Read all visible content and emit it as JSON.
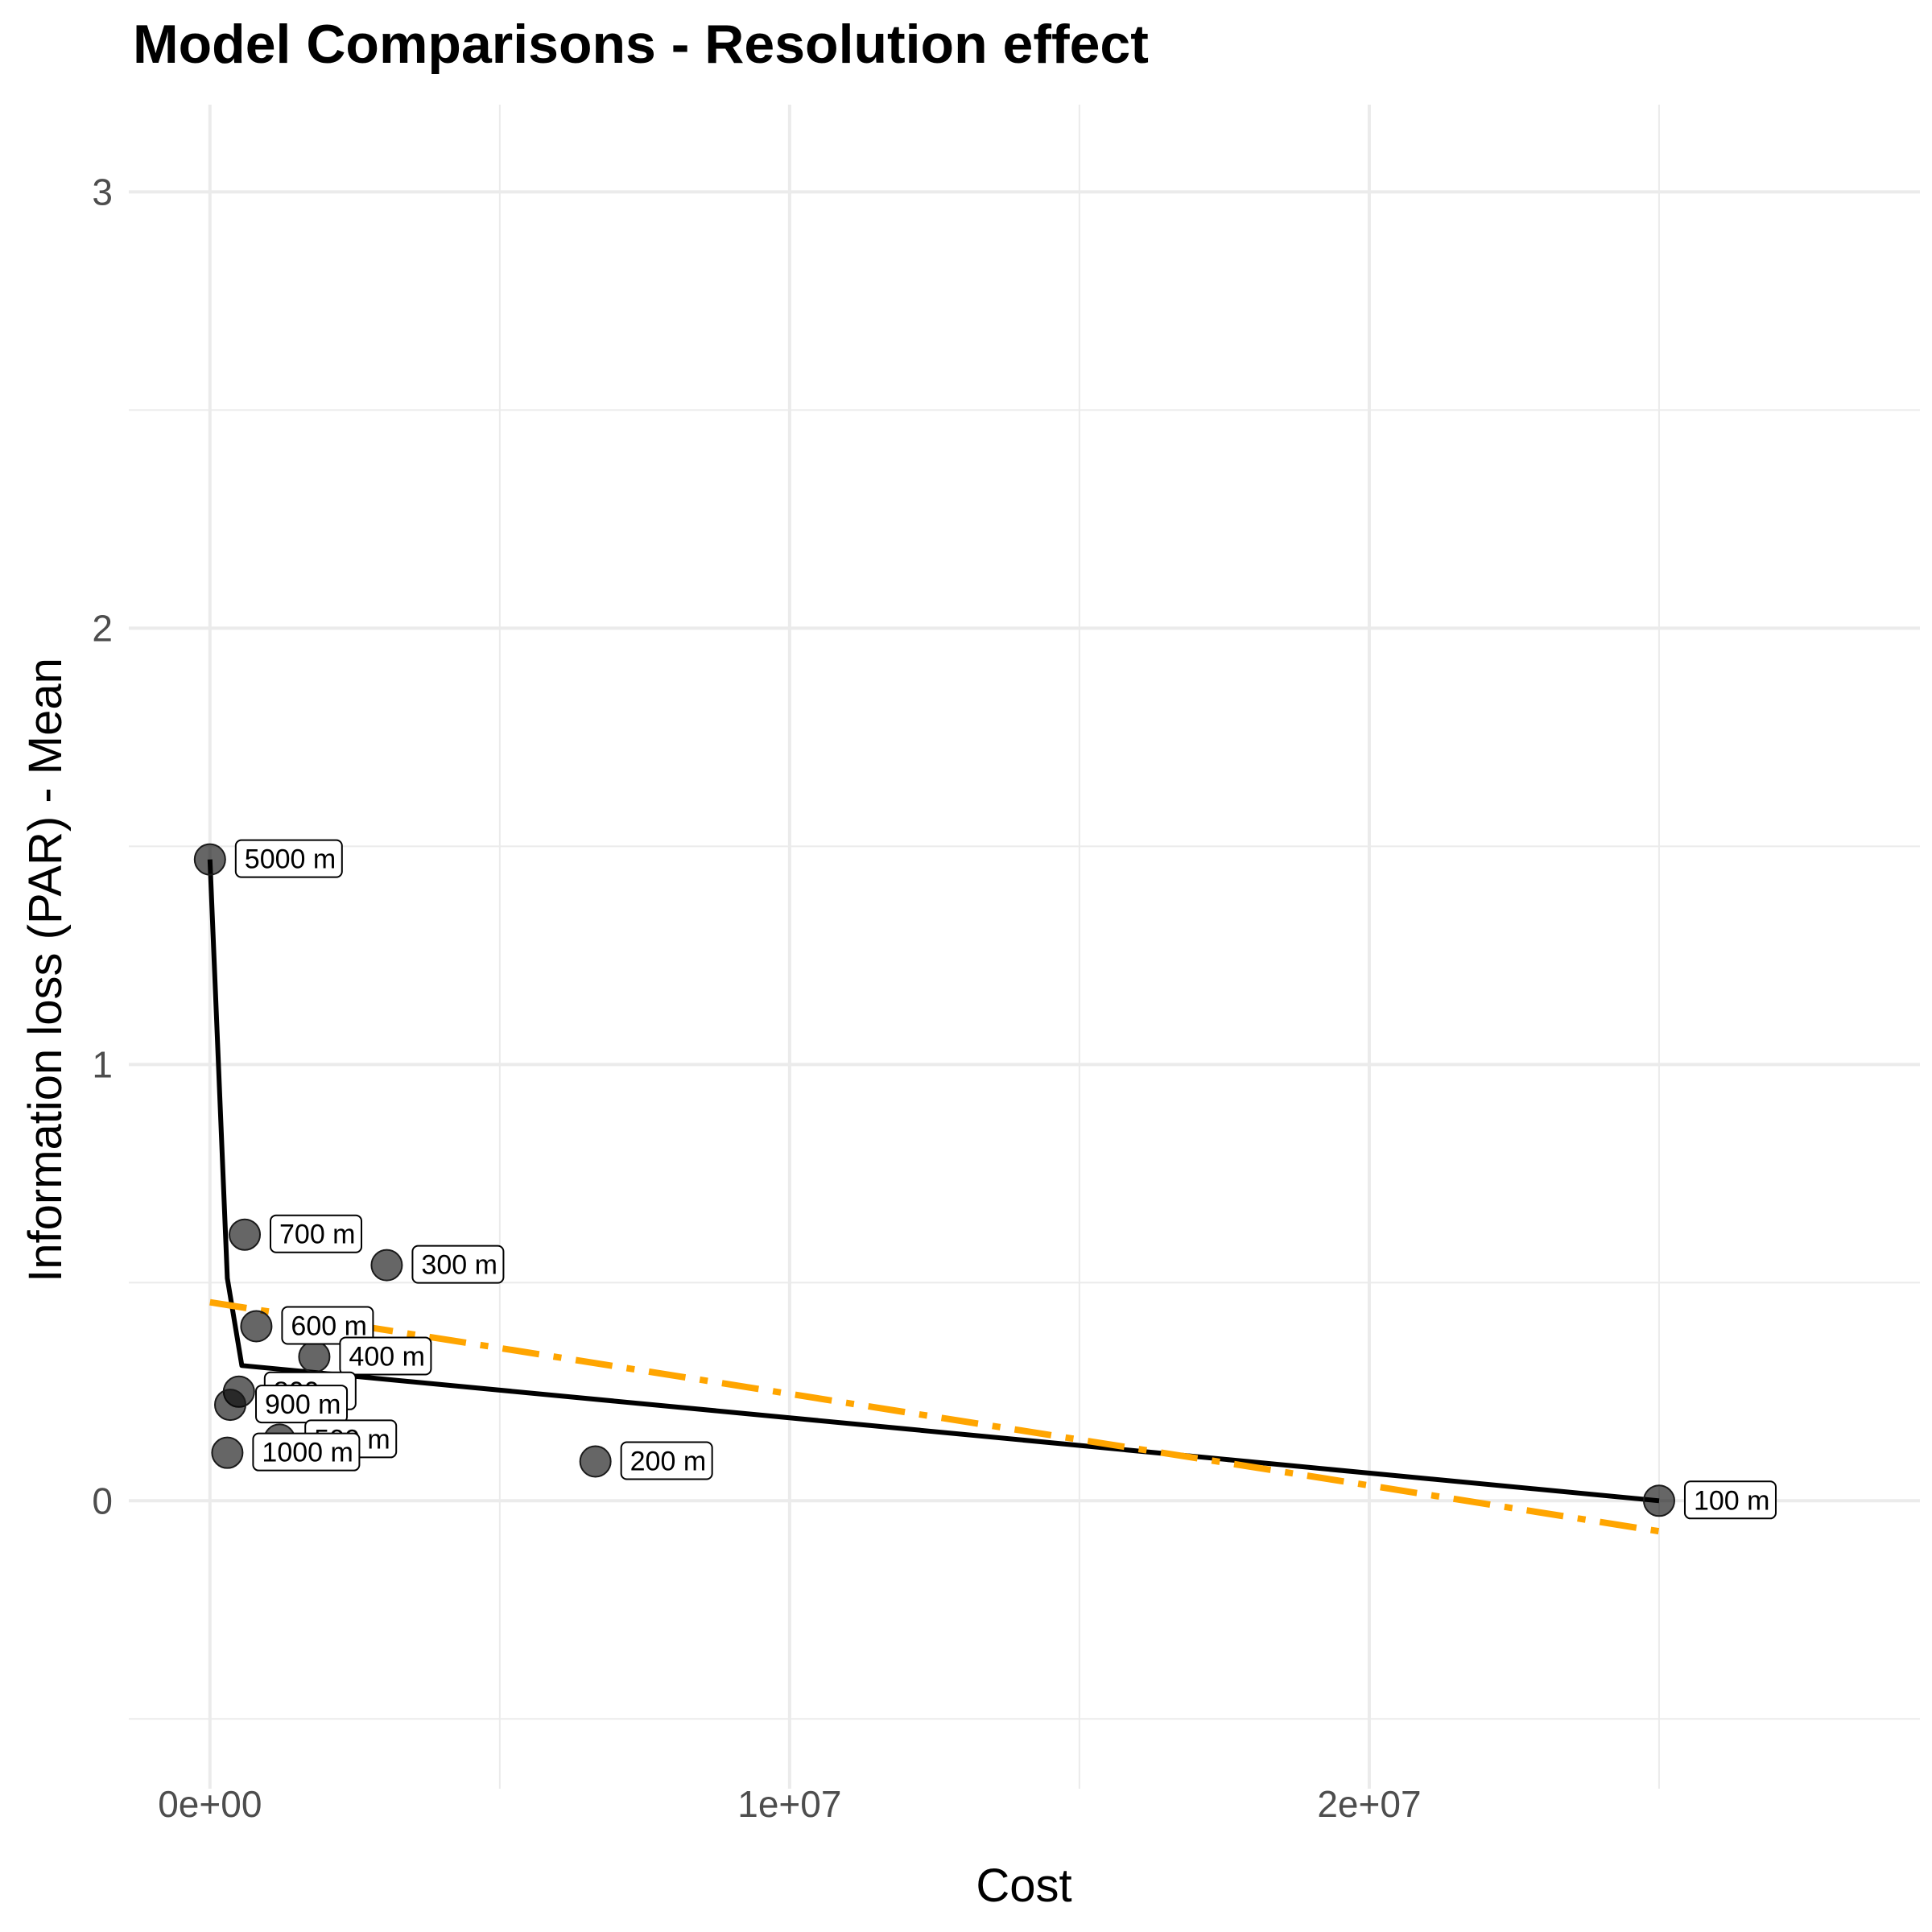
{
  "chart_data": {
    "type": "scatter",
    "title": "Model Comparisons - Resolution effect",
    "xlabel": "Cost",
    "ylabel": "Information loss (PAR) - Mean",
    "xlim": [
      -1400000,
      29500000
    ],
    "ylim": [
      -0.66,
      3.2
    ],
    "x_ticks": [
      0,
      10000000,
      20000000
    ],
    "x_tick_labels": [
      "0e+00",
      "1e+07",
      "2e+07"
    ],
    "y_ticks": [
      0,
      1,
      2,
      3
    ],
    "y_tick_labels": [
      "0",
      "1",
      "2",
      "3"
    ],
    "grid": true,
    "legend": "none",
    "points": [
      {
        "label": "5000 m",
        "x": 0,
        "y": 1.47
      },
      {
        "label": "700 m",
        "x": 600000,
        "y": 0.61
      },
      {
        "label": "300 m",
        "x": 3050000,
        "y": 0.54
      },
      {
        "label": "600 m",
        "x": 800000,
        "y": 0.4
      },
      {
        "label": "400 m",
        "x": 1800000,
        "y": 0.33
      },
      {
        "label": "800 m",
        "x": 500000,
        "y": 0.25
      },
      {
        "label": "900 m",
        "x": 350000,
        "y": 0.22
      },
      {
        "label": "500 m",
        "x": 1200000,
        "y": 0.14
      },
      {
        "label": "1000 m",
        "x": 300000,
        "y": 0.11
      },
      {
        "label": "200 m",
        "x": 6650000,
        "y": 0.09
      },
      {
        "label": "100 m",
        "x": 25000000,
        "y": 0.0
      }
    ],
    "series": [
      {
        "type": "line",
        "color": "#000000",
        "style": "solid",
        "x": [
          0,
          300000,
          550000,
          25000000
        ],
        "y": [
          1.47,
          0.51,
          0.31,
          0.0
        ]
      },
      {
        "type": "line",
        "color": "#FFA500",
        "style": "dashdot",
        "x": [
          0,
          25000000
        ],
        "y": [
          0.455,
          -0.07
        ]
      }
    ]
  }
}
